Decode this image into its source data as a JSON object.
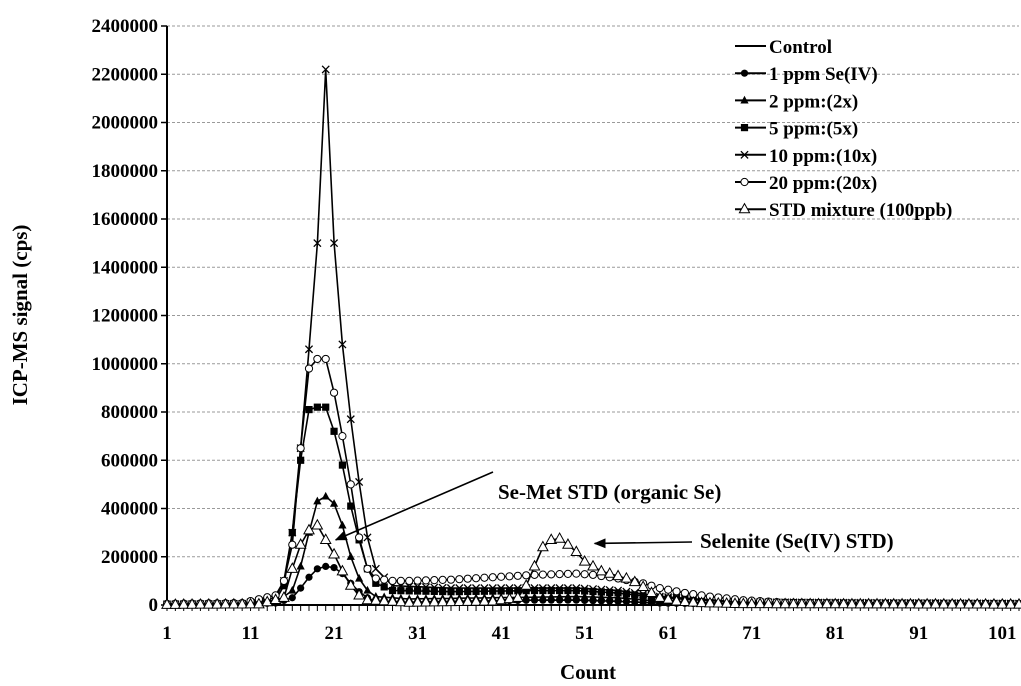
{
  "chart_data": {
    "type": "line",
    "title": "",
    "xlabel": "Count",
    "ylabel": "ICP-MS signal (cps)",
    "xlim": [
      1,
      103
    ],
    "ylim": [
      0,
      2400000
    ],
    "x_ticks": [
      1,
      11,
      21,
      31,
      41,
      51,
      61,
      71,
      81,
      91,
      101
    ],
    "y_ticks": [
      0,
      200000,
      400000,
      600000,
      800000,
      1000000,
      1200000,
      1400000,
      1600000,
      1800000,
      2000000,
      2200000,
      2400000
    ],
    "grid": "horizontal",
    "legend_position": "top-right",
    "series": [
      {
        "name": "Control",
        "marker": "none",
        "points": [
          [
            1,
            0
          ],
          [
            103,
            0
          ]
        ]
      },
      {
        "name": "1 ppm Se(IV)",
        "marker": "circle-filled",
        "points": [
          [
            1,
            2000
          ],
          [
            10,
            3000
          ],
          [
            14,
            8000
          ],
          [
            16,
            30000
          ],
          [
            17,
            70000
          ],
          [
            18,
            115000
          ],
          [
            19,
            150000
          ],
          [
            20,
            160000
          ],
          [
            21,
            155000
          ],
          [
            22,
            130000
          ],
          [
            23,
            90000
          ],
          [
            24,
            55000
          ],
          [
            25,
            30000
          ],
          [
            26,
            15000
          ],
          [
            28,
            10000
          ],
          [
            35,
            15000
          ],
          [
            45,
            20000
          ],
          [
            50,
            20000
          ],
          [
            55,
            15000
          ],
          [
            60,
            8000
          ],
          [
            70,
            3000
          ],
          [
            103,
            2000
          ]
        ]
      },
      {
        "name": "2 ppm:(2x)",
        "marker": "triangle-filled",
        "points": [
          [
            1,
            2000
          ],
          [
            10,
            3000
          ],
          [
            14,
            10000
          ],
          [
            16,
            60000
          ],
          [
            17,
            160000
          ],
          [
            18,
            300000
          ],
          [
            19,
            430000
          ],
          [
            20,
            450000
          ],
          [
            21,
            420000
          ],
          [
            22,
            330000
          ],
          [
            23,
            200000
          ],
          [
            24,
            110000
          ],
          [
            25,
            60000
          ],
          [
            26,
            35000
          ],
          [
            30,
            25000
          ],
          [
            40,
            30000
          ],
          [
            50,
            35000
          ],
          [
            55,
            30000
          ],
          [
            60,
            15000
          ],
          [
            70,
            5000
          ],
          [
            103,
            3000
          ]
        ]
      },
      {
        "name": "5 ppm:(5x)",
        "marker": "square-filled",
        "points": [
          [
            1,
            3000
          ],
          [
            10,
            5000
          ],
          [
            14,
            20000
          ],
          [
            15,
            80000
          ],
          [
            16,
            300000
          ],
          [
            17,
            600000
          ],
          [
            18,
            810000
          ],
          [
            19,
            820000
          ],
          [
            20,
            820000
          ],
          [
            21,
            720000
          ],
          [
            22,
            580000
          ],
          [
            23,
            410000
          ],
          [
            24,
            270000
          ],
          [
            25,
            150000
          ],
          [
            26,
            90000
          ],
          [
            28,
            60000
          ],
          [
            35,
            55000
          ],
          [
            45,
            60000
          ],
          [
            50,
            60000
          ],
          [
            55,
            50000
          ],
          [
            60,
            30000
          ],
          [
            70,
            10000
          ],
          [
            103,
            5000
          ]
        ]
      },
      {
        "name": "10 ppm:(10x)",
        "marker": "x",
        "points": [
          [
            1,
            3000
          ],
          [
            10,
            5000
          ],
          [
            14,
            30000
          ],
          [
            15,
            100000
          ],
          [
            16,
            300000
          ],
          [
            17,
            650000
          ],
          [
            18,
            1060000
          ],
          [
            19,
            1500000
          ],
          [
            20,
            2220000
          ],
          [
            21,
            1500000
          ],
          [
            22,
            1080000
          ],
          [
            23,
            770000
          ],
          [
            24,
            510000
          ],
          [
            25,
            280000
          ],
          [
            26,
            150000
          ],
          [
            28,
            80000
          ],
          [
            35,
            70000
          ],
          [
            45,
            70000
          ],
          [
            50,
            70000
          ],
          [
            55,
            60000
          ],
          [
            60,
            35000
          ],
          [
            70,
            12000
          ],
          [
            103,
            6000
          ]
        ]
      },
      {
        "name": "20 ppm:(20x)",
        "marker": "circle-open",
        "points": [
          [
            1,
            5000
          ],
          [
            10,
            8000
          ],
          [
            14,
            40000
          ],
          [
            15,
            100000
          ],
          [
            16,
            250000
          ],
          [
            17,
            650000
          ],
          [
            18,
            980000
          ],
          [
            19,
            1020000
          ],
          [
            20,
            1020000
          ],
          [
            21,
            880000
          ],
          [
            22,
            700000
          ],
          [
            23,
            500000
          ],
          [
            24,
            280000
          ],
          [
            25,
            150000
          ],
          [
            26,
            110000
          ],
          [
            28,
            100000
          ],
          [
            30,
            100000
          ],
          [
            35,
            105000
          ],
          [
            40,
            115000
          ],
          [
            45,
            125000
          ],
          [
            50,
            130000
          ],
          [
            52,
            125000
          ],
          [
            55,
            110000
          ],
          [
            58,
            90000
          ],
          [
            60,
            70000
          ],
          [
            63,
            50000
          ],
          [
            66,
            35000
          ],
          [
            70,
            20000
          ],
          [
            75,
            10000
          ],
          [
            85,
            6000
          ],
          [
            103,
            5000
          ]
        ]
      },
      {
        "name": "STD mixture (100ppb)",
        "marker": "triangle-open",
        "points": [
          [
            1,
            1000
          ],
          [
            12,
            3000
          ],
          [
            15,
            30000
          ],
          [
            16,
            150000
          ],
          [
            17,
            250000
          ],
          [
            18,
            310000
          ],
          [
            19,
            330000
          ],
          [
            20,
            270000
          ],
          [
            21,
            210000
          ],
          [
            22,
            140000
          ],
          [
            23,
            80000
          ],
          [
            24,
            40000
          ],
          [
            25,
            20000
          ],
          [
            30,
            10000
          ],
          [
            40,
            15000
          ],
          [
            43,
            30000
          ],
          [
            44,
            80000
          ],
          [
            45,
            160000
          ],
          [
            46,
            240000
          ],
          [
            47,
            270000
          ],
          [
            48,
            275000
          ],
          [
            49,
            250000
          ],
          [
            50,
            220000
          ],
          [
            51,
            180000
          ],
          [
            52,
            160000
          ],
          [
            53,
            140000
          ],
          [
            54,
            130000
          ],
          [
            55,
            120000
          ],
          [
            56,
            110000
          ],
          [
            57,
            95000
          ],
          [
            58,
            75000
          ],
          [
            59,
            50000
          ],
          [
            60,
            30000
          ],
          [
            62,
            15000
          ],
          [
            65,
            8000
          ],
          [
            70,
            4000
          ],
          [
            103,
            2000
          ]
        ]
      }
    ],
    "annotations": [
      {
        "text": "Se-Met STD (organic Se)",
        "target_x": 20,
        "target_y": 270000
      },
      {
        "text": "Selenite (Se(IV) STD)",
        "target_x": 51,
        "target_y": 255000
      }
    ]
  }
}
